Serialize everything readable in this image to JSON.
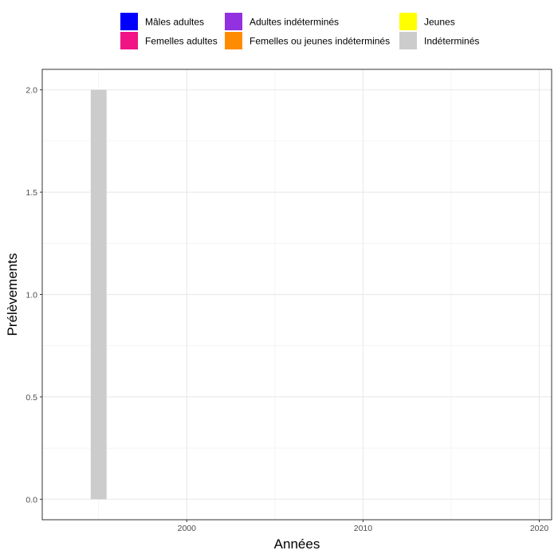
{
  "chart_data": {
    "type": "bar",
    "title": "",
    "xlabel": "Années",
    "ylabel": "Prélèvements",
    "xlim": [
      1991.8,
      2020.7
    ],
    "ylim": [
      -0.1,
      2.1
    ],
    "x_ticks": [
      2000,
      2010,
      2020
    ],
    "y_ticks": [
      0.0,
      0.5,
      1.0,
      1.5,
      2.0
    ],
    "y_tick_labels": [
      "0.0",
      "0.5",
      "1.0",
      "1.5",
      "2.0"
    ],
    "grid": true,
    "legend_position": "top",
    "series": [
      {
        "name": "Mâles adultes",
        "color": "#0000ff",
        "points": []
      },
      {
        "name": "Femelles adultes",
        "color": "#f01485",
        "points": []
      },
      {
        "name": "Adultes indéterminés",
        "color": "#9330e0",
        "points": []
      },
      {
        "name": "Femelles ou jeunes indéterminés",
        "color": "#ff8c00",
        "points": []
      },
      {
        "name": "Jeunes",
        "color": "#ffff00",
        "points": []
      },
      {
        "name": "Indéterminés",
        "color": "#cccccc",
        "points": [
          {
            "x": 1995,
            "y": 2
          }
        ]
      }
    ]
  }
}
